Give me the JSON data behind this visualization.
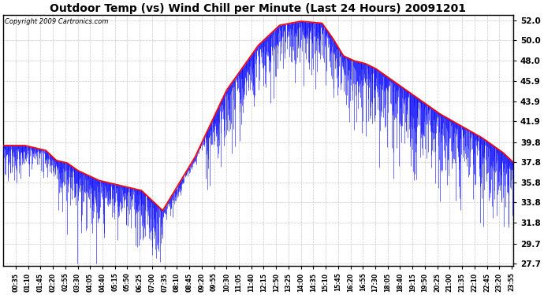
{
  "title": "Outdoor Temp (vs) Wind Chill per Minute (Last 24 Hours) 20091201",
  "copyright_text": "Copyright 2009 Cartronics.com",
  "yticks": [
    27.7,
    29.7,
    31.8,
    33.8,
    35.8,
    37.8,
    39.8,
    41.9,
    43.9,
    45.9,
    48.0,
    50.0,
    52.0
  ],
  "ymin": 27.7,
  "ymax": 52.0,
  "background_color": "#ffffff",
  "plot_bg_color": "#ffffff",
  "grid_color": "#bbbbbb",
  "title_fontsize": 10,
  "red_line_color": "#ff0000",
  "blue_bar_color": "#0000ff",
  "n_minutes": 1440,
  "xtick_interval": 35,
  "copyright_fontsize": 6,
  "ytick_fontsize": 7.5,
  "xtick_fontsize": 5.5
}
